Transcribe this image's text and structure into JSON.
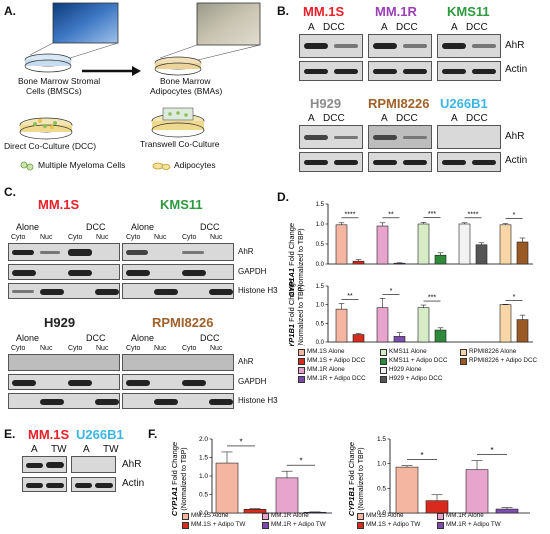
{
  "panels": {
    "A": "A.",
    "B": "B.",
    "C": "C.",
    "D": "D.",
    "E": "E.",
    "F": "F."
  },
  "panelA": {
    "bmsc_label_1": "Bone Marrow Stromal",
    "bmsc_label_2": "Cells (BMSCs)",
    "bma_label_1": "Bone Marrow",
    "bma_label_2": "Adipocytes (BMAs)",
    "dcc_label": "Direct Co-Culture (DCC)",
    "transwell_label": "Transwell Co-Culture",
    "mm_cells_label": "Multiple Myeloma Cells",
    "adipocytes_label": "Adipocytes"
  },
  "colors": {
    "mm1s": "#e8202a",
    "mm1r": "#9b3fb5",
    "kms11": "#2e9a3f",
    "h929": "#8c8c8c",
    "rpmi8226": "#a0612b",
    "u266b1": "#3db6e6",
    "mm1s_alone": "#f4b6a0",
    "mm1s_adipo": "#d92a1e",
    "mm1r_alone": "#e7a4cd",
    "mm1r_adipo": "#7c4cae",
    "kms11_alone": "#d6ecc7",
    "kms11_adipo": "#2c8a3a",
    "h929_alone": "#f2f2f2",
    "h929_adipo": "#555555",
    "rpmi_alone": "#f8d6a8",
    "rpmi_adipo": "#9a5a26"
  },
  "panelB": {
    "cells_top": [
      "MM.1S",
      "MM.1R",
      "KMS11"
    ],
    "cells_bottom": [
      "H929",
      "RPMI8226",
      "U266B1"
    ],
    "lane_a": "A",
    "lane_dcc": "DCC",
    "ahr": "AhR",
    "actin": "Actin"
  },
  "panelC": {
    "cells_top": [
      "MM.1S",
      "KMS11"
    ],
    "cells_bottom": [
      "H929",
      "RPMI8226"
    ],
    "alone": "Alone",
    "dcc": "DCC",
    "cyto": "Cyto",
    "nuc": "Nuc",
    "ahr": "AhR",
    "gapdh": "GAPDH",
    "histone": "Histone H3"
  },
  "panelD": {
    "top_ylabel_gene": "CYP1A1",
    "top_ylabel_rest": " Fold Change",
    "ylabel_norm": "(Normalized to TBP)",
    "bottom_ylabel_gene": "CYP1B1",
    "top_sig": [
      "****",
      "**",
      "***",
      "****",
      "*"
    ],
    "bottom_sig": [
      "**",
      "*",
      "***",
      "*"
    ],
    "legend": [
      "MM.1S Alone",
      "MM.1S + Adipo DCC",
      "MM.1R Alone",
      "MM.1R + Adipo DCC",
      "KMS11 Alone",
      "KMS11 + Adipo DCC",
      "H929 Alone",
      "H929 + Adipo DCC",
      "RPMI8226 Alone",
      "RPMI8226 + Adipo DCC"
    ]
  },
  "panelE": {
    "cells": [
      "MM.1S",
      "U266B1"
    ],
    "lane_a": "A",
    "lane_tw": "TW",
    "ahr": "AhR",
    "actin": "Actin"
  },
  "panelF": {
    "left_ylabel_gene": "CYP1A1",
    "right_ylabel_gene": "CYP1B1",
    "ylabel_rest": " Fold Change",
    "ylabel_norm": "(Normalized to TBP)",
    "sig": [
      "*",
      "*"
    ],
    "legend": [
      "MM.1S Alone",
      "MM.1S + Adipo TW",
      "MM.1R Alone",
      "MM.1R + Adipo TW"
    ]
  },
  "chart_data": [
    {
      "type": "bar",
      "title": "",
      "ylabel": "CYP1A1 Fold Change (Normalized to TBP)",
      "ylim": [
        0,
        1.5
      ],
      "yticks": [
        "0.0",
        "0.5",
        "1.0",
        "1.5"
      ],
      "categories": [
        "MM.1S",
        "MM.1R",
        "KMS11",
        "H929",
        "RPMI8226"
      ],
      "series": [
        {
          "name": "Alone",
          "values": [
            0.98,
            0.95,
            1.0,
            1.0,
            0.98
          ],
          "errors": [
            0.05,
            0.08,
            0.04,
            0.03,
            0.03
          ]
        },
        {
          "name": "+ Adipo DCC",
          "values": [
            0.07,
            0.02,
            0.22,
            0.48,
            0.55
          ],
          "errors": [
            0.04,
            0.01,
            0.06,
            0.05,
            0.1
          ]
        }
      ]
    },
    {
      "type": "bar",
      "title": "",
      "ylabel": "CYP1B1 Fold Change (Normalized to TBP)",
      "ylim": [
        0,
        1.5
      ],
      "yticks": [
        "0.0",
        "0.5",
        "1.0",
        "1.5"
      ],
      "categories": [
        "MM.1S",
        "MM.1R",
        "KMS11",
        "H929",
        "RPMI8226"
      ],
      "series": [
        {
          "name": "Alone",
          "values": [
            0.88,
            0.92,
            0.92,
            null,
            1.0
          ],
          "errors": [
            0.15,
            0.25,
            0.07,
            null,
            0.01
          ]
        },
        {
          "name": "+ Adipo DCC",
          "values": [
            0.2,
            0.15,
            0.32,
            null,
            0.6
          ],
          "errors": [
            0.03,
            0.1,
            0.06,
            null,
            0.12
          ]
        }
      ]
    },
    {
      "type": "bar",
      "title": "",
      "ylabel": "CYP1A1 Fold Change (Normalized to TBP)",
      "ylim": [
        0,
        2.0
      ],
      "yticks": [
        "0.0",
        "0.5",
        "1.0",
        "1.5",
        "2.0"
      ],
      "categories": [
        "MM.1S",
        "MM.1R"
      ],
      "series": [
        {
          "name": "Alone",
          "values": [
            1.35,
            0.95
          ],
          "errors": [
            0.3,
            0.18
          ]
        },
        {
          "name": "+ Adipo TW",
          "values": [
            0.1,
            0.02
          ],
          "errors": [
            0.02,
            0.01
          ]
        }
      ]
    },
    {
      "type": "bar",
      "title": "",
      "ylabel": "CYP1B1 Fold Change (Normalized to TBP)",
      "ylim": [
        0,
        1.5
      ],
      "yticks": [
        "0.0",
        "0.5",
        "1.0",
        "1.5"
      ],
      "categories": [
        "MM.1S",
        "MM.1R"
      ],
      "series": [
        {
          "name": "Alone",
          "values": [
            0.93,
            0.88
          ],
          "errors": [
            0.03,
            0.18
          ]
        },
        {
          "name": "+ Adipo TW",
          "values": [
            0.25,
            0.08
          ],
          "errors": [
            0.12,
            0.03
          ]
        }
      ]
    }
  ]
}
